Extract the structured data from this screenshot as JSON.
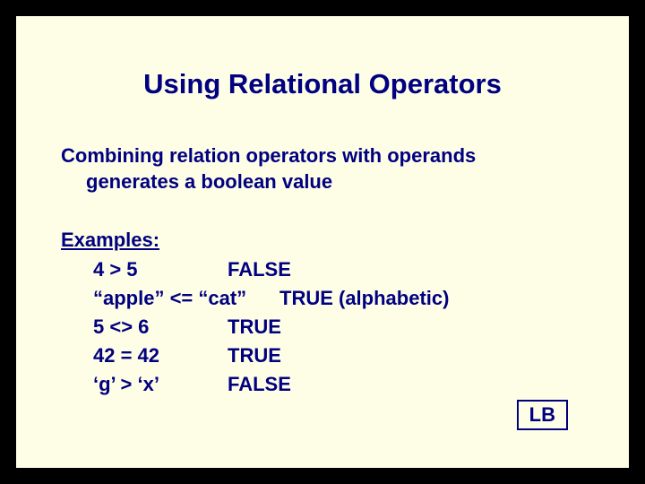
{
  "colors": {
    "page_bg": "#000000",
    "slide_bg": "#fefee6",
    "slide_border": "#000000",
    "text": "#000080",
    "badge_border": "#000080"
  },
  "typography": {
    "title_fontsize_pt": 24,
    "body_fontsize_pt": 17,
    "font_family": "Arial",
    "font_weight": "bold"
  },
  "title": "Using Relational Operators",
  "intro_line1": "Combining relation operators with operands",
  "intro_line2": "generates a boolean value",
  "examples_label": "Examples:",
  "examples": [
    {
      "expr": "4 > 5",
      "result": "FALSE",
      "wide": false
    },
    {
      "expr": "“apple” <= “cat”",
      "result": "TRUE (alphabetic)",
      "wide": true
    },
    {
      "expr": "5 <> 6",
      "result": "TRUE",
      "wide": false
    },
    {
      "expr": "42 = 42",
      "result": "TRUE",
      "wide": false
    },
    {
      "expr": "‘g’ > ‘x’",
      "result": "FALSE",
      "wide": false
    }
  ],
  "badge": "LB"
}
